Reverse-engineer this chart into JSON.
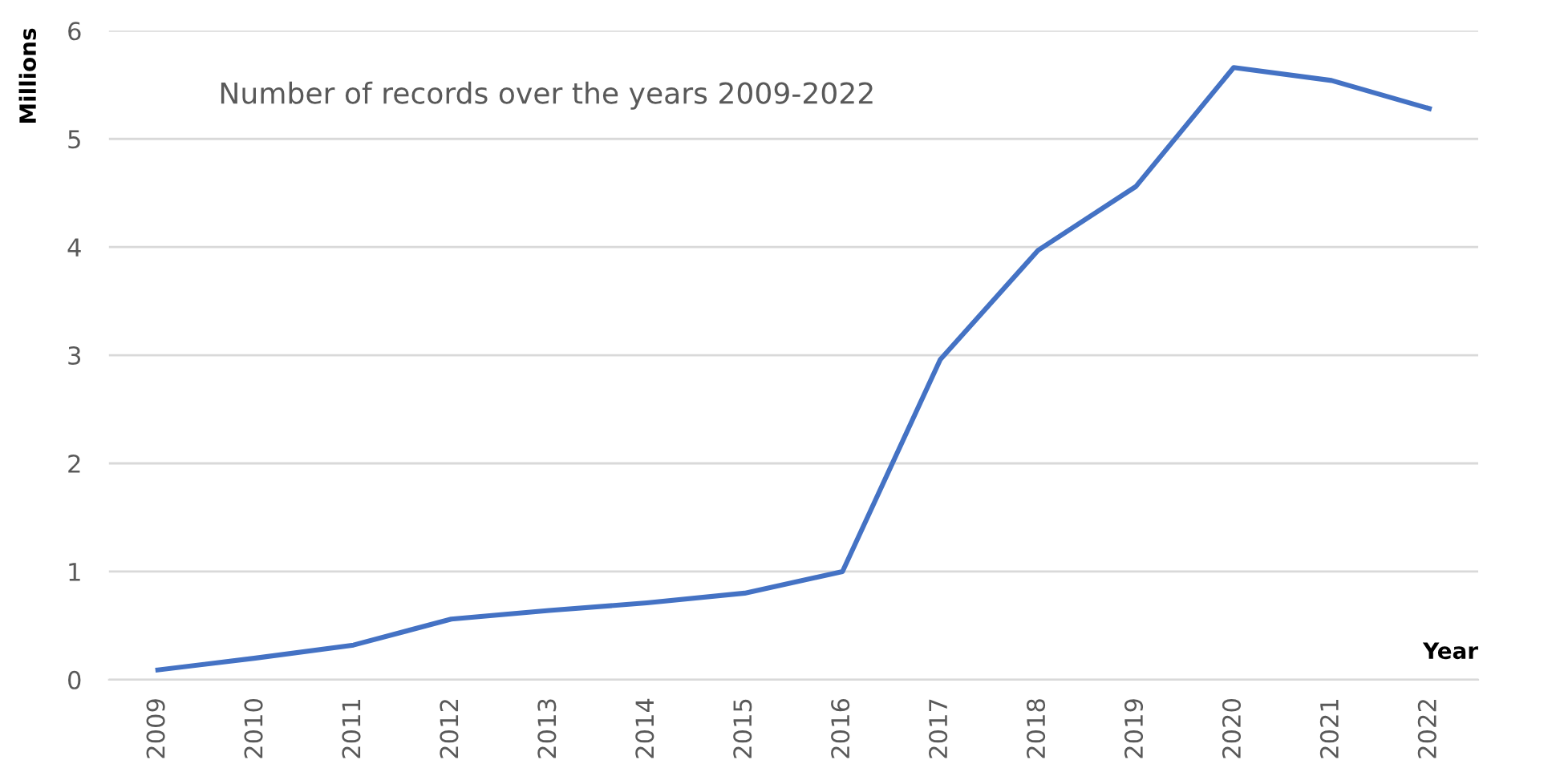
{
  "chart_data": {
    "type": "line",
    "categories": [
      "2009",
      "2010",
      "2011",
      "2012",
      "2013",
      "2014",
      "2015",
      "2016",
      "2017",
      "2018",
      "2019",
      "2020",
      "2021",
      "2022"
    ],
    "series": [
      {
        "color": "#4472c4",
        "values": [
          0.09,
          0.2,
          0.32,
          0.56,
          0.64,
          0.71,
          0.8,
          1.0,
          2.96,
          3.97,
          4.56,
          5.66,
          5.54,
          5.28
        ]
      }
    ],
    "ylim": [
      0,
      6
    ],
    "yticks": [
      0,
      1,
      2,
      3,
      4,
      5,
      6
    ],
    "grid": "y",
    "marker": "none",
    "line_style": "solid",
    "ylabel": "Millions",
    "xlabel": "Year",
    "annotations": [
      "Number of records over the years 2009-2022"
    ]
  }
}
